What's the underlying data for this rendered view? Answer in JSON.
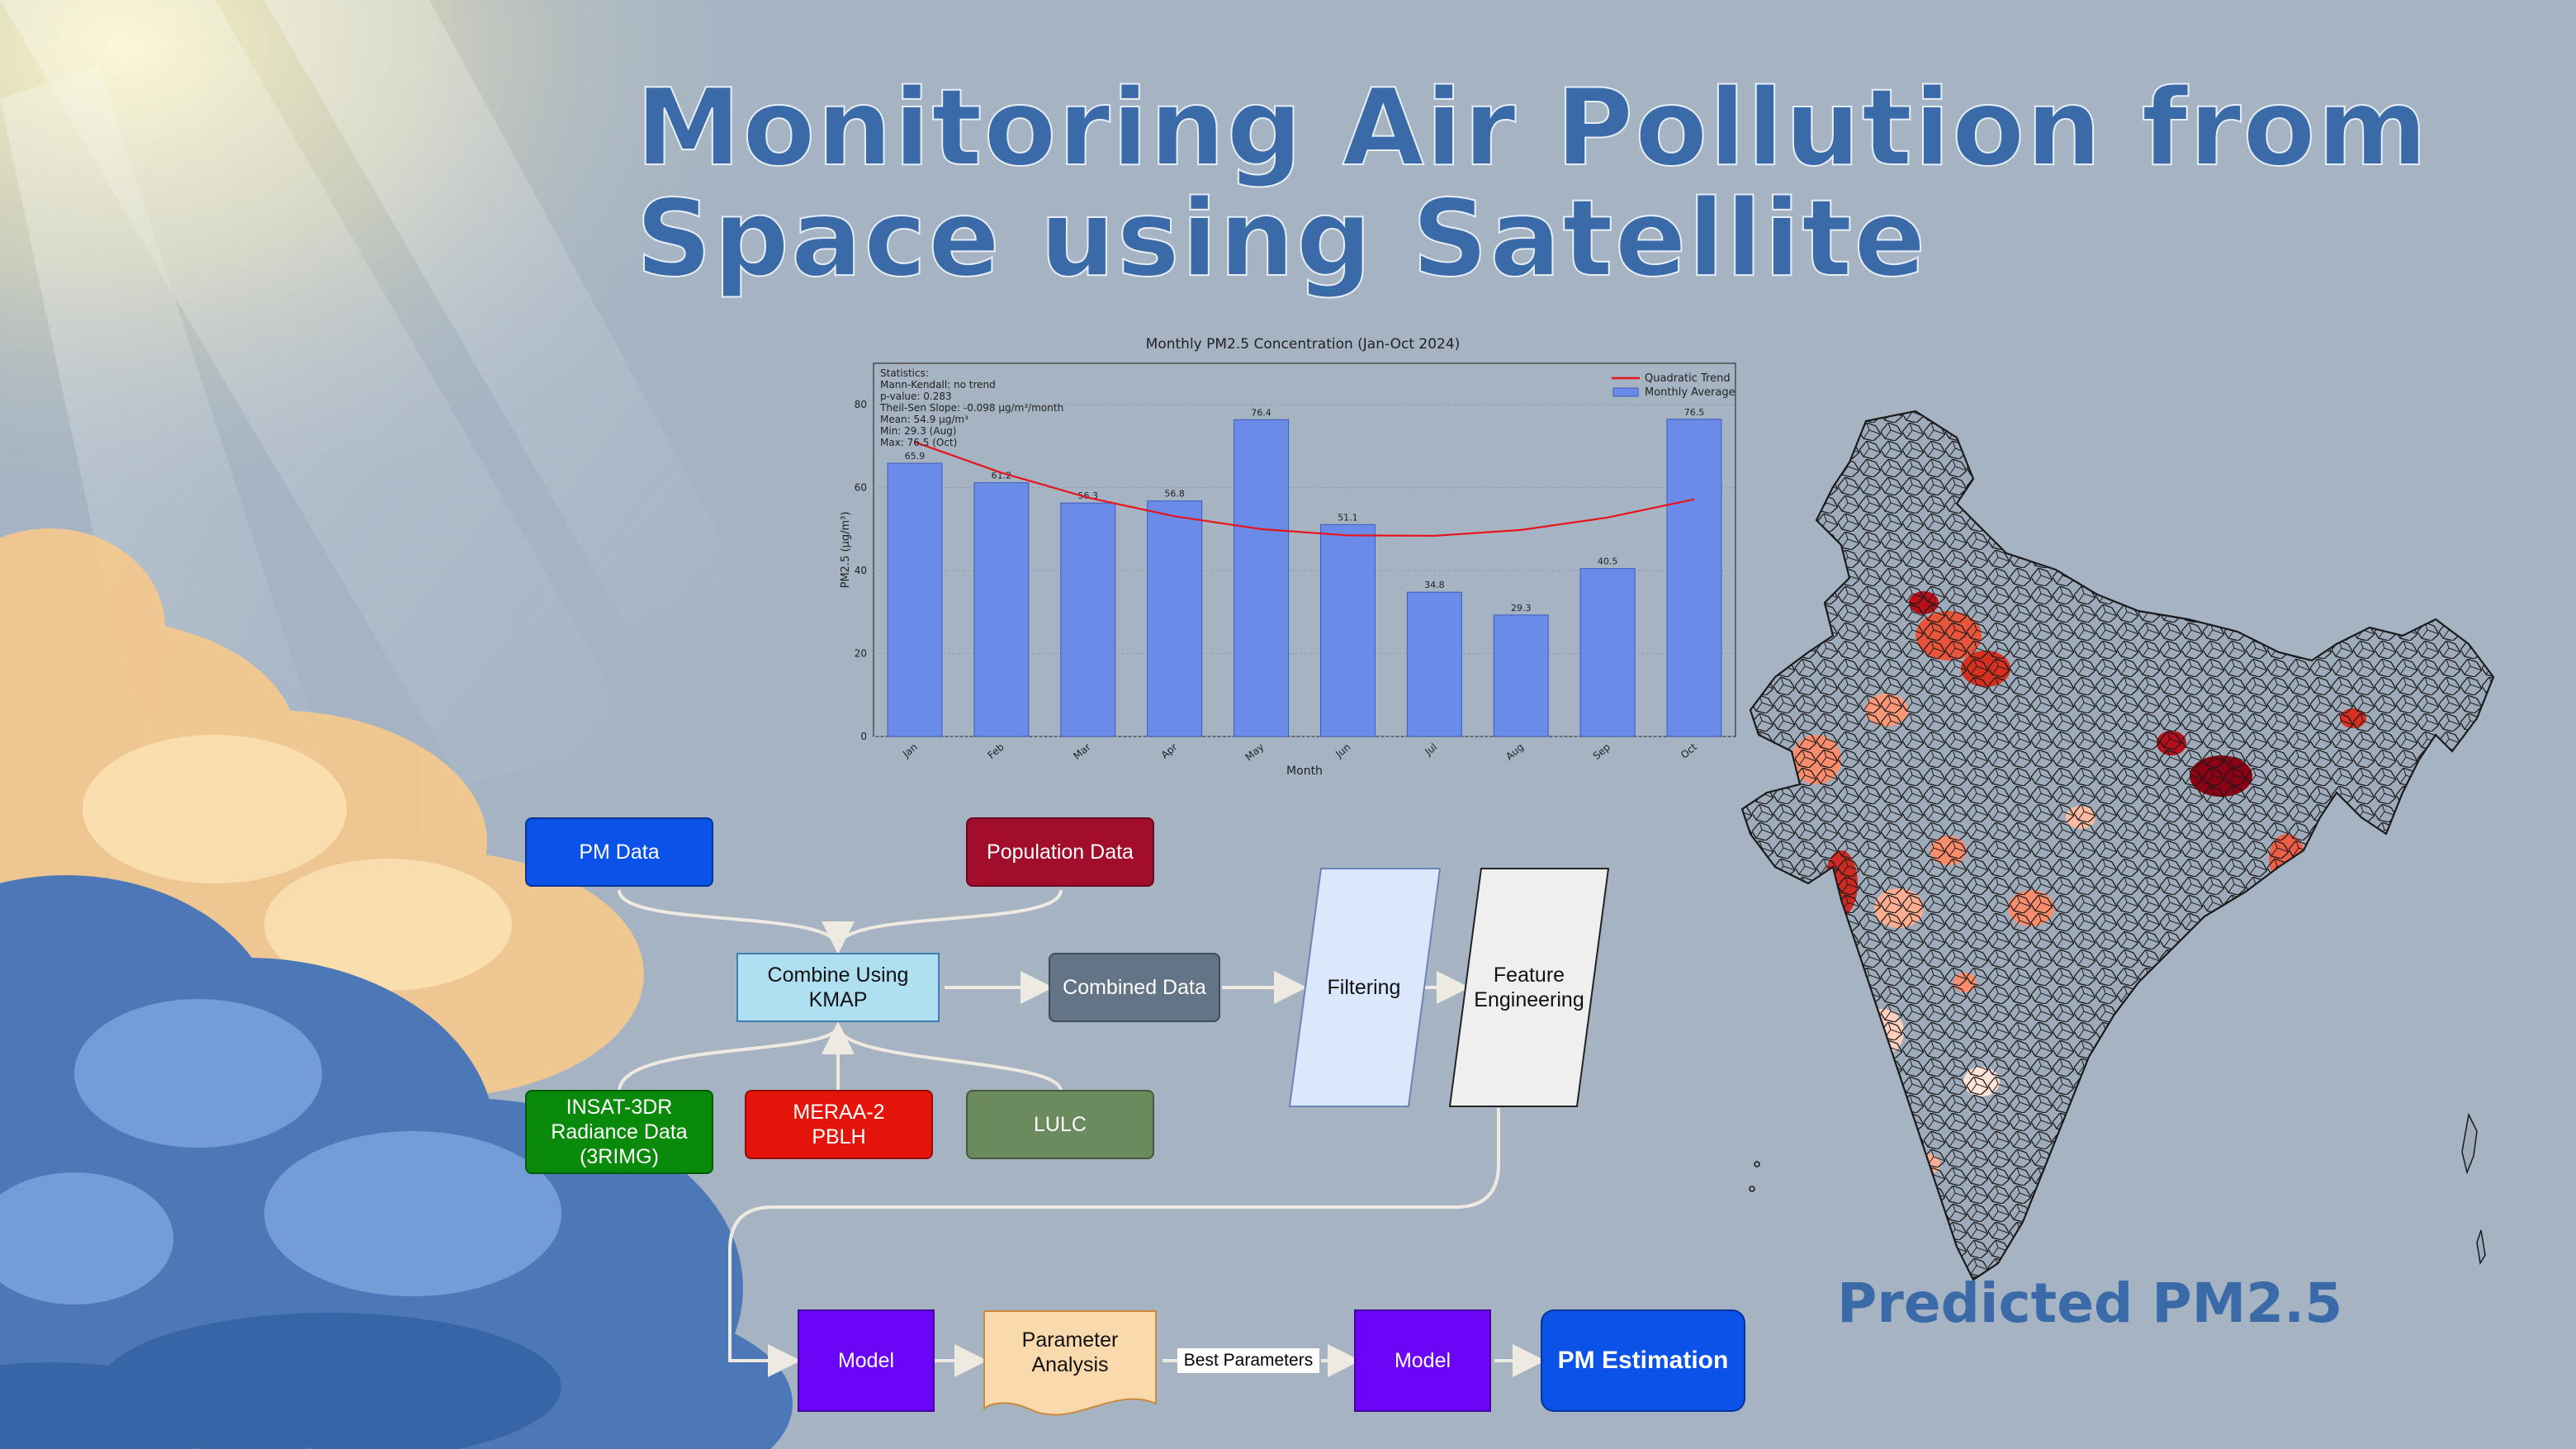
{
  "title": {
    "line1": "Monitoring Air Pollution from",
    "line2": "Space using Satellite"
  },
  "chart_data": {
    "type": "bar",
    "title": "Monthly PM2.5 Concentration (Jan-Oct 2024)",
    "xlabel": "Month",
    "ylabel": "PM2.5 (µg/m³)",
    "categories": [
      "Jan",
      "Feb",
      "Mar",
      "Apr",
      "May",
      "Jun",
      "Jul",
      "Aug",
      "Sep",
      "Oct"
    ],
    "values": [
      65.9,
      61.2,
      56.3,
      56.8,
      76.4,
      51.1,
      34.8,
      29.3,
      40.5,
      76.5
    ],
    "value_labels": [
      "65.9",
      "61.2",
      "56.3",
      "56.8",
      "76.4",
      "51.1",
      "34.8",
      "29.3",
      "40.5",
      "76.5"
    ],
    "trend": [
      71.0,
      63.6,
      57.6,
      53.1,
      50.0,
      48.5,
      48.4,
      49.8,
      52.8,
      57.2
    ],
    "ylim": [
      0,
      90
    ],
    "yticks": [
      0,
      20,
      40,
      60,
      80
    ],
    "grid": true,
    "legend_position": "top-right",
    "legend": [
      "Quadratic Trend",
      "Monthly Average"
    ],
    "stats": [
      "Statistics:",
      "Mann-Kendall: no trend",
      "p-value: 0.283",
      "Theil-Sen Slope: -0.098 µg/m³/month",
      "Mean: 54.9 µg/m³",
      "Min: 29.3 (Aug)",
      "Max: 76.5 (Oct)"
    ],
    "colors": {
      "bar": "#6a8be8",
      "bar_edge": "#3d5bbd",
      "trend": "#e8141c"
    }
  },
  "flow": {
    "pm_data": "PM Data",
    "population_data": "Population Data",
    "combine": [
      "Combine Using",
      "KMAP"
    ],
    "combined_data": "Combined Data",
    "filtering": "Filtering",
    "feature_engineering": [
      "Feature",
      "Engineering"
    ],
    "insat": [
      "INSAT-3DR",
      "Radiance Data",
      "(3RIMG)"
    ],
    "meraa": [
      "MERAA-2",
      "PBLH"
    ],
    "lulc": "LULC",
    "model1": "Model",
    "parameter_analysis": [
      "Parameter",
      "Analysis"
    ],
    "best_parameters": "Best Parameters",
    "model2": "Model",
    "pm_estimation": "PM Estimation"
  },
  "map_caption": "Predicted PM2.5",
  "colors": {
    "background": "#a5b3c3",
    "title": "#3b6aa8",
    "pm_data": "#0a52e8",
    "population_data": "#a10d2a",
    "combine": "#aee0f2",
    "combined_data": "#647487",
    "filtering": "#dbe8fb",
    "feature_engineering": "#efefef",
    "insat": "#0a8a0a",
    "meraa": "#e5140a",
    "lulc": "#6b8a5e",
    "model": "#6a06f5",
    "parameter_analysis": "#fad9ad",
    "pm_estimation": "#0a52e8"
  }
}
